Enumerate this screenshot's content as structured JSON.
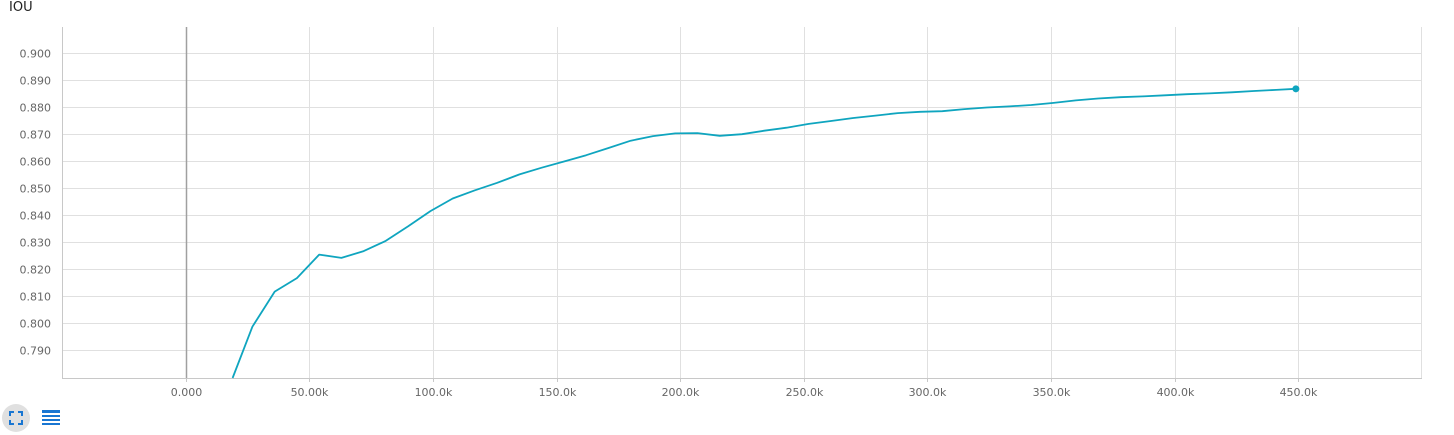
{
  "chart_data": {
    "type": "line",
    "title": "IOU",
    "xlabel": "",
    "ylabel": "",
    "xlim": [
      -50000,
      500000
    ],
    "ylim": [
      0.7795,
      0.9095
    ],
    "x_ticks": [
      0,
      50000,
      100000,
      150000,
      200000,
      250000,
      300000,
      350000,
      400000,
      450000
    ],
    "x_tick_labels": [
      "0.000",
      "50.00k",
      "100.0k",
      "150.0k",
      "200.0k",
      "250.0k",
      "300.0k",
      "350.0k",
      "400.0k",
      "450.0k"
    ],
    "y_ticks": [
      0.79,
      0.8,
      0.81,
      0.82,
      0.83,
      0.84,
      0.85,
      0.86,
      0.87,
      0.88,
      0.89,
      0.9
    ],
    "y_tick_labels": [
      "0.790",
      "0.800",
      "0.810",
      "0.820",
      "0.830",
      "0.840",
      "0.850",
      "0.860",
      "0.870",
      "0.880",
      "0.890",
      "0.900"
    ],
    "grid": true,
    "series": [
      {
        "name": "IOU",
        "color": "#0fa5bf",
        "x": [
          19000,
          27000,
          36000,
          45000,
          54000,
          63000,
          72000,
          81000,
          90000,
          99000,
          108000,
          117000,
          126000,
          135000,
          144000,
          153000,
          162000,
          171000,
          180000,
          189000,
          198000,
          207000,
          216000,
          225000,
          234000,
          243000,
          252000,
          261000,
          270000,
          279000,
          288000,
          297000,
          306000,
          315000,
          324000,
          333000,
          342000,
          351000,
          360000,
          369000,
          378000,
          387000,
          396000,
          405000,
          414000,
          423000,
          432000,
          441000,
          449000
        ],
        "y": [
          0.7795,
          0.7985,
          0.8115,
          0.8165,
          0.8252,
          0.824,
          0.8265,
          0.8303,
          0.8357,
          0.8413,
          0.846,
          0.849,
          0.8518,
          0.8549,
          0.8574,
          0.8597,
          0.862,
          0.8647,
          0.8674,
          0.8691,
          0.8701,
          0.8702,
          0.8692,
          0.8698,
          0.8711,
          0.8722,
          0.8736,
          0.8747,
          0.8758,
          0.8767,
          0.8776,
          0.8781,
          0.8783,
          0.8791,
          0.8797,
          0.8801,
          0.8806,
          0.8814,
          0.8823,
          0.883,
          0.8835,
          0.8838,
          0.8842,
          0.8846,
          0.8849,
          0.8853,
          0.8858,
          0.8862,
          0.8866
        ]
      }
    ]
  },
  "controls": {
    "expand_icon": "expand-icon",
    "data_icon": "data-table-icon"
  }
}
